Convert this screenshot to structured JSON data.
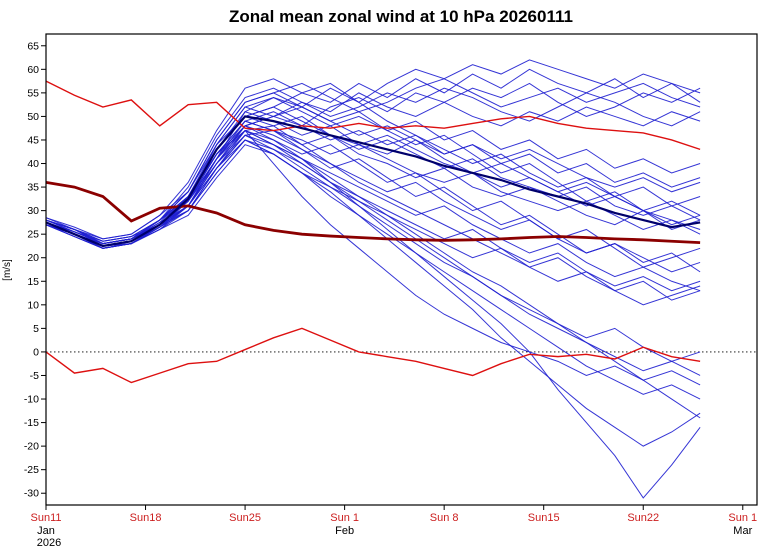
{
  "title": "Zonal mean zonal wind at 10 hPa 20260111",
  "chart_data": {
    "type": "line",
    "title": "Zonal mean zonal wind at 10 hPa 20260111",
    "xlabel": "",
    "ylabel": "[m/s]",
    "ylim": [
      -32.5,
      67.5
    ],
    "y_ticks": [
      -30,
      -25,
      -20,
      -15,
      -10,
      -5,
      0,
      5,
      10,
      15,
      20,
      25,
      30,
      35,
      40,
      45,
      50,
      55,
      60,
      65
    ],
    "x_range_days": [
      0,
      50
    ],
    "x_ticks": [
      {
        "day": 0,
        "label": "Sun11",
        "month": "Jan",
        "year": "2026"
      },
      {
        "day": 7,
        "label": "Sun18"
      },
      {
        "day": 14,
        "label": "Sun25"
      },
      {
        "day": 21,
        "label": "Sun 1",
        "month": "Feb"
      },
      {
        "day": 28,
        "label": "Sun 8"
      },
      {
        "day": 35,
        "label": "Sun15"
      },
      {
        "day": 42,
        "label": "Sun22"
      },
      {
        "day": 49,
        "label": "Sun 1",
        "month": "Mar"
      }
    ],
    "zero_line": 0,
    "grid": false,
    "legend": "none",
    "colors": {
      "ensemble": "#1f1fd0",
      "navy_mean": "#00006b",
      "dark_red": "#8b0000",
      "red_thin": "#dd1010",
      "x_label": "#cc2020",
      "axis": "#000000"
    },
    "x_days": [
      0,
      2,
      4,
      6,
      8,
      10,
      12,
      14,
      16,
      18,
      20,
      22,
      24,
      26,
      28,
      30,
      32,
      34,
      36,
      38,
      40,
      42,
      44,
      46
    ],
    "series": {
      "ensemble_members": [
        [
          27,
          25,
          23,
          24,
          28,
          33,
          43,
          50,
          52,
          55,
          53,
          57,
          54,
          58,
          55,
          59,
          56,
          60,
          57,
          55,
          58,
          54,
          57,
          53
        ],
        [
          28,
          26,
          23.5,
          24.5,
          27,
          31,
          41,
          51,
          54,
          52,
          56,
          53,
          57,
          60,
          58,
          61,
          59,
          62,
          60,
          58,
          56,
          59,
          57,
          55
        ],
        [
          27.5,
          25,
          22.5,
          23,
          26.5,
          32,
          44,
          52,
          50,
          53,
          51,
          55,
          52,
          50,
          53,
          56,
          54,
          57,
          53,
          50,
          52,
          55,
          53,
          56
        ],
        [
          28,
          26,
          24,
          25,
          29,
          34,
          45,
          53,
          55,
          57,
          54,
          51,
          53,
          56,
          58,
          55,
          52,
          54,
          56,
          53,
          55,
          57,
          54,
          52
        ],
        [
          27,
          24.5,
          22,
          23,
          27,
          33,
          42,
          48,
          50,
          48,
          52,
          54,
          51,
          55,
          53,
          50,
          48,
          51,
          49,
          52,
          50,
          48,
          51,
          49
        ],
        [
          28.5,
          26,
          23,
          24,
          28,
          35,
          46,
          54,
          56,
          53,
          50,
          52,
          55,
          53,
          56,
          54,
          51,
          49,
          52,
          55,
          53,
          50,
          48,
          51
        ],
        [
          27,
          25,
          22.5,
          23.5,
          27,
          32,
          41,
          49,
          51,
          48,
          45,
          47,
          44,
          46,
          42,
          44,
          40,
          42,
          38,
          40,
          36,
          38,
          35,
          37
        ],
        [
          27.5,
          25.5,
          23,
          24,
          28,
          33,
          43,
          51,
          49,
          46,
          48,
          44,
          42,
          45,
          41,
          38,
          40,
          37,
          34,
          36,
          33,
          30,
          32,
          29
        ],
        [
          28,
          26,
          23,
          24,
          27.5,
          31,
          40,
          47,
          48,
          50,
          46,
          43,
          45,
          42,
          39,
          41,
          37,
          35,
          33,
          35,
          31,
          29,
          31,
          28
        ],
        [
          27,
          25,
          22,
          23,
          26,
          30,
          39,
          46,
          47,
          44,
          46,
          42,
          40,
          37,
          39,
          35,
          33,
          35,
          32,
          29,
          27,
          30,
          28,
          25
        ],
        [
          27.5,
          25,
          23,
          24,
          28,
          34,
          44,
          50,
          52,
          49,
          46,
          44,
          46,
          43,
          40,
          38,
          35,
          37,
          34,
          31,
          33,
          30,
          27,
          29
        ],
        [
          28,
          25.5,
          23.5,
          24.5,
          28,
          32,
          42,
          49,
          47,
          45,
          42,
          44,
          41,
          38,
          36,
          38,
          34,
          32,
          30,
          32,
          29,
          26,
          28,
          26
        ],
        [
          27,
          24.5,
          22,
          23,
          26.5,
          31,
          40,
          48,
          46,
          43,
          40,
          37,
          34,
          36,
          32,
          29,
          26,
          28,
          24,
          21,
          23,
          20,
          17,
          19
        ],
        [
          27.5,
          25,
          22.5,
          23.5,
          27,
          32,
          41,
          47,
          44,
          41,
          38,
          35,
          32,
          29,
          31,
          27,
          24,
          21,
          23,
          19,
          16,
          18,
          15,
          13
        ],
        [
          28,
          26,
          23,
          24,
          27,
          30,
          38,
          45,
          43,
          40,
          36,
          33,
          30,
          27,
          24,
          26,
          22,
          19,
          21,
          17,
          14,
          16,
          13,
          15
        ],
        [
          27,
          25,
          22.5,
          23,
          26,
          29,
          37,
          44,
          42,
          38,
          35,
          32,
          29,
          26,
          23,
          20,
          22,
          18,
          15,
          17,
          13,
          10,
          12,
          14
        ],
        [
          27.5,
          25.5,
          23,
          24,
          27.5,
          33,
          43,
          50,
          48,
          44,
          40,
          36,
          33,
          30,
          27,
          24,
          21,
          18,
          20,
          16,
          13,
          15,
          11,
          13
        ],
        [
          27,
          25,
          22,
          23,
          26.5,
          31,
          39,
          46,
          43,
          39,
          35,
          31,
          27,
          23,
          19,
          16,
          12,
          9,
          6,
          3,
          5,
          1,
          -2,
          0
        ],
        [
          28,
          25.5,
          23,
          24,
          27,
          32,
          40,
          47,
          44,
          40,
          36,
          32,
          28,
          24,
          20,
          16,
          12,
          8,
          5,
          2,
          -1,
          -4,
          -2,
          -5
        ],
        [
          27.5,
          25,
          22.5,
          23.5,
          26.5,
          30,
          38,
          45,
          42,
          38,
          33,
          29,
          25,
          21,
          17,
          13,
          9,
          5,
          1,
          -3,
          -6,
          -9,
          -7,
          -10
        ],
        [
          27,
          24.5,
          22,
          23,
          26,
          31,
          40,
          46,
          44,
          41,
          37,
          33,
          29,
          25,
          21,
          17,
          14,
          10,
          6,
          2,
          -2,
          -6,
          -10,
          -14
        ],
        [
          27.5,
          25,
          22.5,
          23.5,
          27,
          32,
          41,
          48,
          45,
          41,
          36,
          31,
          26,
          21,
          16,
          11,
          6,
          0,
          -8,
          -15,
          -22,
          -31,
          -24,
          -16
        ],
        [
          28,
          26,
          23,
          24,
          27,
          31,
          39,
          45,
          42,
          38,
          34,
          29,
          24,
          19,
          14,
          9,
          3,
          -2,
          -7,
          -12,
          -16,
          -20,
          -17,
          -13
        ],
        [
          27,
          25,
          23,
          24,
          28,
          33,
          44,
          52,
          54,
          51,
          48,
          50,
          47,
          49,
          45,
          47,
          43,
          45,
          41,
          43,
          39,
          41,
          38,
          40
        ],
        [
          27.5,
          25.5,
          23,
          24,
          27,
          31,
          41,
          48,
          50,
          52,
          49,
          46,
          48,
          45,
          42,
          44,
          41,
          43,
          40,
          37,
          35,
          37,
          34,
          36
        ],
        [
          27,
          25,
          22,
          23,
          26.5,
          30,
          39,
          47,
          45,
          42,
          44,
          40,
          36,
          38,
          34,
          30,
          32,
          28,
          24,
          26,
          22,
          18,
          20,
          22
        ],
        [
          28,
          26,
          23.5,
          24.5,
          28,
          34,
          45,
          53,
          55,
          52,
          49,
          51,
          47,
          44,
          46,
          42,
          38,
          40,
          36,
          32,
          34,
          30,
          26,
          28
        ],
        [
          27.5,
          25,
          22.5,
          23.5,
          27,
          32,
          42,
          49,
          47,
          43,
          39,
          41,
          37,
          33,
          35,
          31,
          27,
          29,
          25,
          21,
          23,
          19,
          21,
          17
        ],
        [
          27,
          25,
          22.5,
          23.5,
          27,
          33,
          42,
          47,
          40,
          33,
          27,
          22,
          17,
          12,
          8,
          5,
          2,
          0,
          -2,
          -5,
          -3,
          -6,
          -4,
          -7
        ],
        [
          28.5,
          26.5,
          24,
          25,
          29,
          36,
          47,
          56,
          58,
          55,
          57,
          53,
          49,
          46,
          43,
          40,
          42,
          38,
          35,
          37,
          33,
          35,
          31,
          33
        ]
      ],
      "navy_mean": [
        27.5,
        25,
        22.5,
        23.5,
        27,
        32.5,
        43,
        50,
        49,
        47.5,
        46,
        44.5,
        43,
        41.5,
        39.5,
        38,
        36.5,
        34.5,
        33,
        31.5,
        29.5,
        28,
        26.5,
        27.5
      ],
      "dark_red": [
        36,
        35,
        33,
        27.8,
        30.5,
        31,
        29.5,
        27,
        25.8,
        25,
        24.6,
        24.3,
        24,
        23.8,
        23.7,
        23.8,
        24,
        24.3,
        24.5,
        24.3,
        24,
        23.8,
        23.5,
        23.2
      ],
      "red_upper": [
        57.5,
        54.5,
        52,
        53.5,
        48,
        52.5,
        53,
        47.5,
        47,
        48,
        47.5,
        48.5,
        47.5,
        48,
        47.5,
        48.5,
        49.5,
        50,
        48.5,
        47.5,
        47,
        46.5,
        45,
        43
      ],
      "red_lower": [
        0,
        -4.5,
        -3.5,
        -6.5,
        -4.5,
        -2.5,
        -2,
        0.5,
        3,
        5,
        2.5,
        0,
        -1,
        -2,
        -3.5,
        -5,
        -2.5,
        -0.5,
        -1,
        -0.5,
        -1.5,
        1,
        -1,
        -2
      ]
    }
  }
}
